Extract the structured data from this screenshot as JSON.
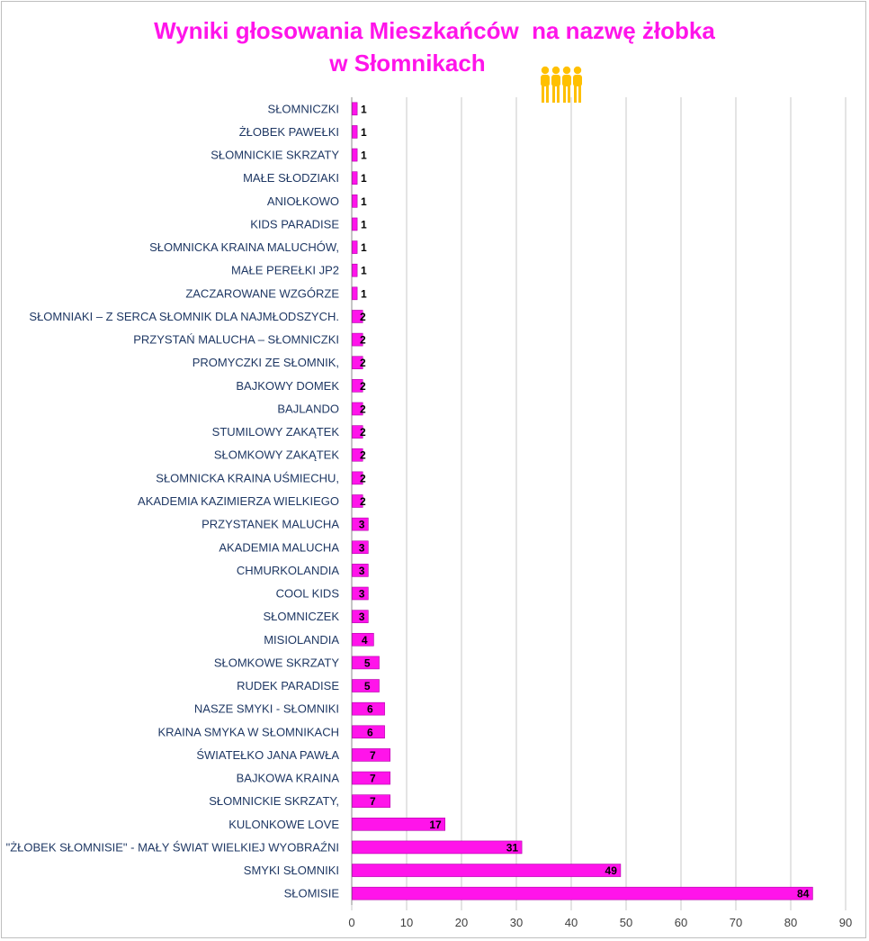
{
  "title_line1": "Wyniki głosowania Mieszkańców  na nazwę żłobka",
  "title_line2": "w Słomnikach",
  "icon": "family-people-icon",
  "colors": {
    "bar": "#ff14ea",
    "bar_edge": "#b000a8",
    "title": "#ff14ea",
    "label": "#1f3864",
    "grid": "#c8c8c8",
    "icon": "#ffc000"
  },
  "chart_data": {
    "type": "bar",
    "orientation": "horizontal",
    "title": "Wyniki głosowania Mieszkańców  na nazwę żłobka w Słomnikach",
    "xlabel": "",
    "ylabel": "",
    "xlim": [
      0,
      90
    ],
    "xticks": [
      0,
      10,
      20,
      30,
      40,
      50,
      60,
      70,
      80,
      90
    ],
    "grid": true,
    "categories": [
      "SŁOMNICZKI",
      "ŻŁOBEK PAWEŁKI",
      "SŁOMNICKIE SKRZATY",
      "MAŁE SŁODZIAKI",
      "ANIOŁKOWO",
      "KIDS PARADISE",
      "SŁOMNICKA KRAINA MALUCHÓW,",
      "MAŁE PEREŁKI JP2",
      "ZACZAROWANE WZGÓRZE",
      "SŁOMNIAKI – Z SERCA SŁOMNIK DLA NAJMŁODSZYCH.",
      "PRZYSTAŃ MALUCHA – SŁOMNICZKI",
      "PROMYCZKI ZE SŁOMNIK,",
      "BAJKOWY DOMEK",
      "BAJLANDO",
      "STUMILOWY ZAKĄTEK",
      "SŁOMKOWY ZAKĄTEK",
      "SŁOMNICKA KRAINA UŚMIECHU,",
      "AKADEMIA KAZIMIERZA WIELKIEGO",
      "PRZYSTANEK MALUCHA",
      "AKADEMIA MALUCHA",
      "CHMURKOLANDIA",
      "COOL KIDS",
      "SŁOMNICZEK",
      "MISIOLANDIA",
      "SŁOMKOWE SKRZATY",
      "RUDEK PARADISE",
      "NASZE SMYKI - SŁOMNIKI",
      "KRAINA SMYKA W SŁOMNIKACH",
      "ŚWIATEŁKO JANA PAWŁA",
      "BAJKOWA KRAINA",
      "SŁOMNICKIE SKRZATY,",
      "KULONKOWE LOVE",
      "\"ŻŁOBEK SŁOMNISIE\" - MAŁY ŚWIAT WIELKIEJ WYOBRAŹNI",
      "SMYKI SŁOMNIKI",
      "SŁOMISIE"
    ],
    "values": [
      1,
      1,
      1,
      1,
      1,
      1,
      1,
      1,
      1,
      2,
      2,
      2,
      2,
      2,
      2,
      2,
      2,
      2,
      3,
      3,
      3,
      3,
      3,
      4,
      5,
      5,
      6,
      6,
      7,
      7,
      7,
      17,
      31,
      49,
      84
    ]
  }
}
